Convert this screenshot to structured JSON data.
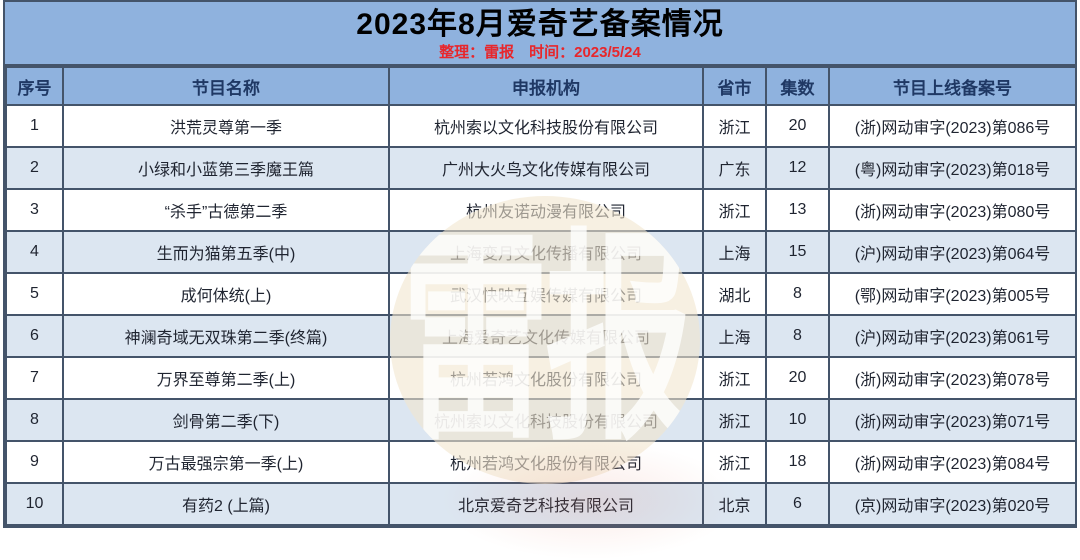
{
  "header": {
    "title": "2023年8月爱奇艺备案情况",
    "subtitle": "整理：雷报　时间：2023/5/24"
  },
  "table": {
    "columns": [
      "序号",
      "节目名称",
      "申报机构",
      "省市",
      "集数",
      "节目上线备案号"
    ],
    "rows": [
      {
        "no": "1",
        "name": "洪荒灵尊第一季",
        "org": "杭州索以文化科技股份有限公司",
        "province": "浙江",
        "episodes": "20",
        "license": "(浙)网动审字(2023)第086号"
      },
      {
        "no": "2",
        "name": "小绿和小蓝第三季魔王篇",
        "org": "广州大火鸟文化传媒有限公司",
        "province": "广东",
        "episodes": "12",
        "license": "(粤)网动审字(2023)第018号"
      },
      {
        "no": "3",
        "name": "“杀手”古德第二季",
        "org": "杭州友诺动漫有限公司",
        "province": "浙江",
        "episodes": "13",
        "license": "(浙)网动审字(2023)第080号"
      },
      {
        "no": "4",
        "name": "生而为猫第五季(中)",
        "org": "上海变月文化传播有限公司",
        "province": "上海",
        "episodes": "15",
        "license": "(沪)网动审字(2023)第064号"
      },
      {
        "no": "5",
        "name": "成何体统(上)",
        "org": "武汉快映互娱传媒有限公司",
        "province": "湖北",
        "episodes": "8",
        "license": "(鄂)网动审字(2023)第005号"
      },
      {
        "no": "6",
        "name": "神澜奇域无双珠第二季(终篇)",
        "org": "上海爱奇艺文化传媒有限公司",
        "province": "上海",
        "episodes": "8",
        "license": "(沪)网动审字(2023)第061号"
      },
      {
        "no": "7",
        "name": "万界至尊第二季(上)",
        "org": "杭州若鸿文化股份有限公司",
        "province": "浙江",
        "episodes": "20",
        "license": "(浙)网动审字(2023)第078号"
      },
      {
        "no": "8",
        "name": "剑骨第二季(下)",
        "org": "杭州索以文化科技股份有限公司",
        "province": "浙江",
        "episodes": "10",
        "license": "(浙)网动审字(2023)第071号"
      },
      {
        "no": "9",
        "name": "万古最强宗第一季(上)",
        "org": "杭州若鸿文化股份有限公司",
        "province": "浙江",
        "episodes": "18",
        "license": "(浙)网动审字(2023)第084号"
      },
      {
        "no": "10",
        "name": "有药2 (上篇)",
        "org": "北京爱奇艺科技有限公司",
        "province": "北京",
        "episodes": "6",
        "license": "(京)网动审字(2023)第020号"
      }
    ]
  },
  "watermark": {
    "text": "雷报"
  },
  "colors": {
    "band_blue": "#8FB2DE",
    "stripe_blue": "#DCE6F1",
    "border_dark": "#44546A",
    "header_text": "#1F3864",
    "subtitle_red": "#E8262B",
    "watermark_cream": "#F1E6CE"
  }
}
